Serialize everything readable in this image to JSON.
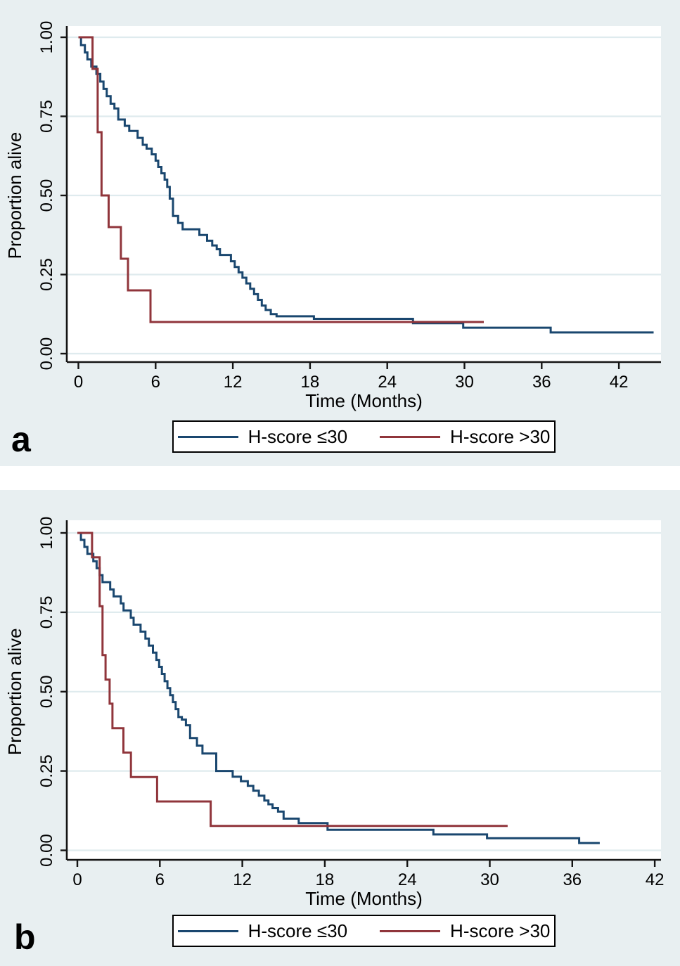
{
  "figure": {
    "background_color": "#e8eff1",
    "plot_background": "#ffffff",
    "grid_color": "#dfebee",
    "axis_color": "#141414",
    "panel_labels": [
      "a",
      "b"
    ]
  },
  "chart_data": [
    {
      "type": "line",
      "step": true,
      "panel": "a",
      "xlabel": "Time (Months)",
      "ylabel": "Proportion alive",
      "xlim": [
        0,
        45.3
      ],
      "ylim": [
        0,
        1
      ],
      "xticks": [
        0,
        6,
        12,
        18,
        24,
        30,
        36,
        42
      ],
      "yticks": [
        0,
        0.25,
        0.5,
        0.75,
        1
      ],
      "ytick_labels": [
        "0.00",
        "0.25",
        "0.50",
        "0.75",
        "1.00"
      ],
      "grid": "horizontal",
      "legend_position": "bottom",
      "legend": [
        {
          "label": "H-score ≤30",
          "color": "#1a476f"
        },
        {
          "label": "H-score >30",
          "color": "#90353b"
        }
      ],
      "series": [
        {
          "name": "H-score ≤30",
          "color": "#1a476f",
          "end_month": 44.7,
          "points": [
            [
              0,
              1
            ],
            [
              0.2,
              0.975
            ],
            [
              0.5,
              0.952
            ],
            [
              0.7,
              0.93
            ],
            [
              1,
              0.907
            ],
            [
              1.4,
              0.884
            ],
            [
              1.7,
              0.86
            ],
            [
              1.95,
              0.837
            ],
            [
              2.2,
              0.814
            ],
            [
              2.5,
              0.79
            ],
            [
              2.8,
              0.775
            ],
            [
              3.1,
              0.74
            ],
            [
              3.6,
              0.72
            ],
            [
              3.95,
              0.704
            ],
            [
              4.6,
              0.682
            ],
            [
              5,
              0.66
            ],
            [
              5.3,
              0.648
            ],
            [
              5.7,
              0.63
            ],
            [
              6,
              0.61
            ],
            [
              6.2,
              0.59
            ],
            [
              6.45,
              0.57
            ],
            [
              6.7,
              0.55
            ],
            [
              6.9,
              0.527
            ],
            [
              7.1,
              0.49
            ],
            [
              7.35,
              0.435
            ],
            [
              7.75,
              0.413
            ],
            [
              8.1,
              0.393
            ],
            [
              9.4,
              0.375
            ],
            [
              10,
              0.357
            ],
            [
              10.4,
              0.342
            ],
            [
              10.75,
              0.33
            ],
            [
              11,
              0.312
            ],
            [
              11.85,
              0.292
            ],
            [
              12.15,
              0.274
            ],
            [
              12.45,
              0.257
            ],
            [
              12.75,
              0.24
            ],
            [
              13.05,
              0.222
            ],
            [
              13.35,
              0.205
            ],
            [
              13.65,
              0.188
            ],
            [
              13.95,
              0.17
            ],
            [
              14.25,
              0.152
            ],
            [
              14.55,
              0.138
            ],
            [
              14.95,
              0.125
            ],
            [
              15.4,
              0.118
            ],
            [
              18.3,
              0.11
            ],
            [
              26,
              0.096
            ],
            [
              29.9,
              0.082
            ],
            [
              36.7,
              0.067
            ]
          ]
        },
        {
          "name": "H-score >30",
          "color": "#90353b",
          "end_month": 31.5,
          "points": [
            [
              0,
              1
            ],
            [
              1.1,
              0.9
            ],
            [
              1.5,
              0.7
            ],
            [
              1.8,
              0.5
            ],
            [
              2.35,
              0.4
            ],
            [
              3.3,
              0.3
            ],
            [
              3.85,
              0.2
            ],
            [
              5.6,
              0.1
            ]
          ]
        }
      ]
    },
    {
      "type": "line",
      "step": true,
      "panel": "b",
      "xlabel": "Time (Months)",
      "ylabel": "Proportion alive",
      "xlim": [
        0,
        42.5
      ],
      "ylim": [
        0,
        1
      ],
      "xticks": [
        0,
        6,
        12,
        18,
        24,
        30,
        36,
        42
      ],
      "yticks": [
        0,
        0.25,
        0.5,
        0.75,
        1
      ],
      "ytick_labels": [
        "0.00",
        "0.25",
        "0.50",
        "0.75",
        "1.00"
      ],
      "grid": "horizontal",
      "legend_position": "bottom",
      "legend": [
        {
          "label": "H-score ≤30",
          "color": "#1a476f"
        },
        {
          "label": "H-score >30",
          "color": "#90353b"
        }
      ],
      "series": [
        {
          "name": "H-score ≤30",
          "color": "#1a476f",
          "end_month": 38,
          "points": [
            [
              0,
              1
            ],
            [
              0.26,
              0.978
            ],
            [
              0.51,
              0.956
            ],
            [
              0.73,
              0.934
            ],
            [
              1.16,
              0.911
            ],
            [
              1.4,
              0.889
            ],
            [
              1.62,
              0.867
            ],
            [
              1.83,
              0.845
            ],
            [
              2.39,
              0.822
            ],
            [
              2.64,
              0.8
            ],
            [
              3.16,
              0.778
            ],
            [
              3.36,
              0.756
            ],
            [
              3.89,
              0.733
            ],
            [
              4.09,
              0.711
            ],
            [
              4.6,
              0.689
            ],
            [
              4.95,
              0.667
            ],
            [
              5.2,
              0.645
            ],
            [
              5.5,
              0.623
            ],
            [
              5.75,
              0.6
            ],
            [
              5.95,
              0.578
            ],
            [
              6.15,
              0.556
            ],
            [
              6.35,
              0.533
            ],
            [
              6.55,
              0.511
            ],
            [
              6.75,
              0.489
            ],
            [
              6.95,
              0.467
            ],
            [
              7.15,
              0.445
            ],
            [
              7.35,
              0.42
            ],
            [
              7.6,
              0.412
            ],
            [
              7.9,
              0.394
            ],
            [
              8.2,
              0.354
            ],
            [
              8.7,
              0.33
            ],
            [
              9.1,
              0.305
            ],
            [
              10.1,
              0.25
            ],
            [
              11.3,
              0.232
            ],
            [
              11.9,
              0.218
            ],
            [
              12.4,
              0.203
            ],
            [
              12.8,
              0.188
            ],
            [
              13.2,
              0.172
            ],
            [
              13.6,
              0.157
            ],
            [
              13.9,
              0.145
            ],
            [
              14.2,
              0.133
            ],
            [
              14.6,
              0.122
            ],
            [
              15,
              0.1
            ],
            [
              16.1,
              0.086
            ],
            [
              18.2,
              0.065
            ],
            [
              25.9,
              0.05
            ],
            [
              29.8,
              0.038
            ],
            [
              36.5,
              0.023
            ]
          ]
        },
        {
          "name": "H-score >30",
          "color": "#90353b",
          "end_month": 31.3,
          "points": [
            [
              0,
              1
            ],
            [
              1.07,
              0.923
            ],
            [
              1.62,
              0.769
            ],
            [
              1.83,
              0.615
            ],
            [
              2.05,
              0.538
            ],
            [
              2.35,
              0.462
            ],
            [
              2.55,
              0.385
            ],
            [
              3.35,
              0.308
            ],
            [
              3.9,
              0.231
            ],
            [
              5.8,
              0.154
            ],
            [
              9.7,
              0.077
            ]
          ]
        }
      ]
    }
  ]
}
